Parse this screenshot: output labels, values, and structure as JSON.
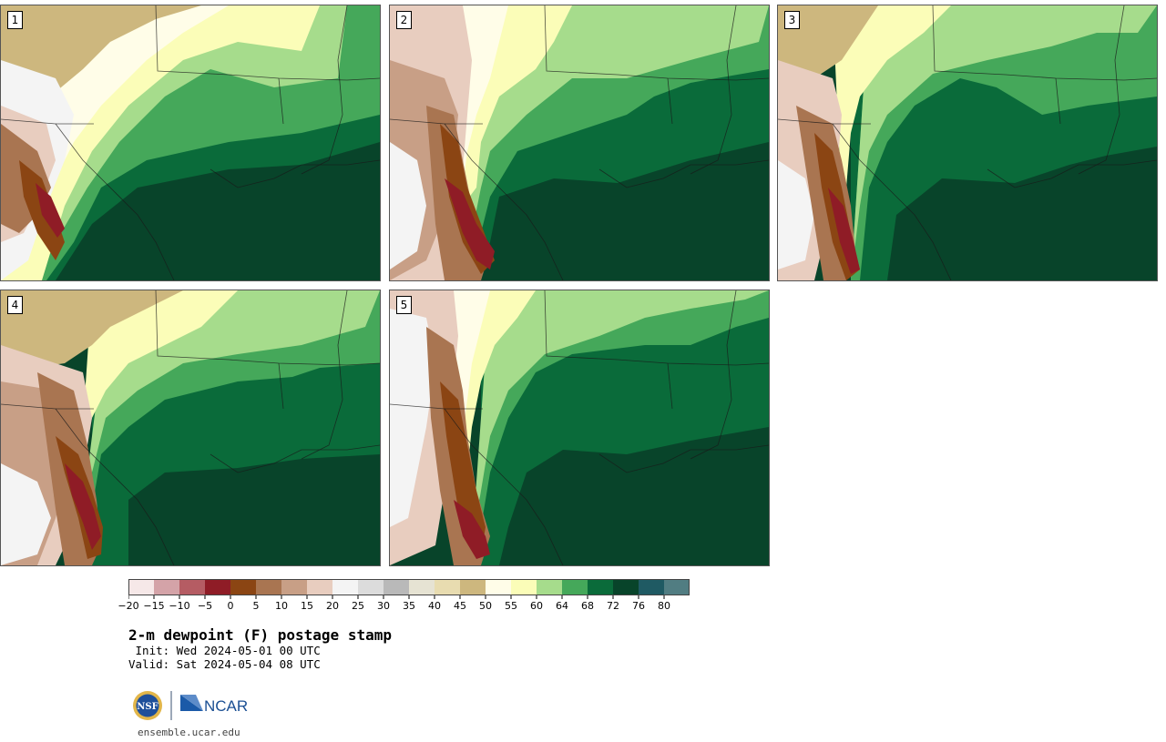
{
  "panels": [
    {
      "label": "1"
    },
    {
      "label": "2"
    },
    {
      "label": "3"
    },
    {
      "label": "4"
    },
    {
      "label": "5"
    }
  ],
  "colorbar": {
    "tick_labels": [
      "−20",
      "−15",
      "−10",
      "−5",
      "0",
      "5",
      "10",
      "15",
      "20",
      "25",
      "30",
      "35",
      "40",
      "45",
      "50",
      "55",
      "60",
      "64",
      "68",
      "72",
      "76",
      "80"
    ],
    "colors": [
      "#f6e8e8",
      "#d4a3a8",
      "#b55c63",
      "#8f1c26",
      "#8b4513",
      "#a97551",
      "#c89f86",
      "#e8cdbf",
      "#f4f4f4",
      "#dcdcdc",
      "#b9b9b9",
      "#e6e3d3",
      "#e8dcb0",
      "#cdb77e",
      "#fffde8",
      "#fbfdb8",
      "#a6dc8c",
      "#45a85a",
      "#0a6b3a",
      "#08442a",
      "#1f5a63",
      "#517d82"
    ]
  },
  "title": "2-m dewpoint (F) postage stamp",
  "init": " Init: Wed 2024-05-01 00 UTC",
  "valid": "Valid: Sat 2024-05-04 08 UTC",
  "logos": {
    "nsf": "NSF",
    "ncar": "NCAR"
  },
  "site": "ensemble.ucar.edu"
}
